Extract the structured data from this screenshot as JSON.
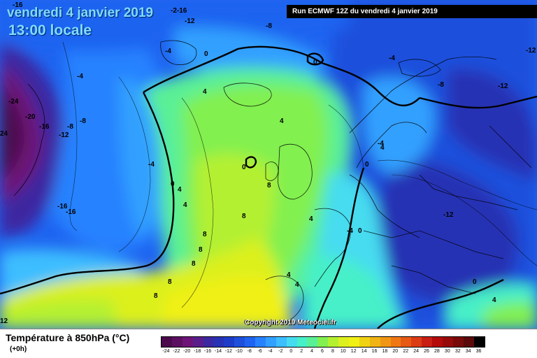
{
  "header": {
    "date": "vendredi 4 janvier 2019",
    "local_time": "13:00 locale",
    "run_info": "Run ECMWF 12Z du vendredi 4 janvier 2019"
  },
  "copyright": "Copyright 2019 Meteociel.fr",
  "footer": {
    "parameter": "Température à 850hPa (°C)",
    "lead_time": "(+0h)"
  },
  "legend": {
    "steps": [
      {
        "label": "-24",
        "color": "#4b0a4b"
      },
      {
        "label": "-22",
        "color": "#5c0f60"
      },
      {
        "label": "-20",
        "color": "#6e1478"
      },
      {
        "label": "-18",
        "color": "#5a1e8c"
      },
      {
        "label": "-16",
        "color": "#3c28a0"
      },
      {
        "label": "-14",
        "color": "#2832b4"
      },
      {
        "label": "-12",
        "color": "#1e3cc8"
      },
      {
        "label": "-10",
        "color": "#1e50dc"
      },
      {
        "label": "-8",
        "color": "#1e64f0"
      },
      {
        "label": "-6",
        "color": "#2882ff"
      },
      {
        "label": "-4",
        "color": "#32a0ff"
      },
      {
        "label": "-2",
        "color": "#3cbeff"
      },
      {
        "label": "0",
        "color": "#46dcf0"
      },
      {
        "label": "2",
        "color": "#46f0c8"
      },
      {
        "label": "4",
        "color": "#5af096"
      },
      {
        "label": "6",
        "color": "#82f050"
      },
      {
        "label": "8",
        "color": "#b4f032"
      },
      {
        "label": "10",
        "color": "#dcf01e"
      },
      {
        "label": "12",
        "color": "#f0f014"
      },
      {
        "label": "14",
        "color": "#f0d214"
      },
      {
        "label": "16",
        "color": "#f0b414"
      },
      {
        "label": "18",
        "color": "#f09614"
      },
      {
        "label": "20",
        "color": "#f07814"
      },
      {
        "label": "22",
        "color": "#e65a14"
      },
      {
        "label": "24",
        "color": "#dc3c14"
      },
      {
        "label": "26",
        "color": "#c81e14"
      },
      {
        "label": "28",
        "color": "#b40a0a"
      },
      {
        "label": "30",
        "color": "#960a0a"
      },
      {
        "label": "32",
        "color": "#780a0a"
      },
      {
        "label": "34",
        "color": "#5a0a0a"
      },
      {
        "label": "36",
        "color": "#000000"
      }
    ]
  },
  "isotherm_labels": {
    "m24a": "-24",
    "m24b": "24",
    "m20": "-20",
    "m16a": "-16",
    "m16b": "-16",
    "m16c": "-16",
    "m16d": "-16",
    "m16e": "-2-16",
    "m12a": "-12",
    "m12b": "-12",
    "m12c": "-12",
    "m12d": "-12",
    "m12e": "-12",
    "m8a": "-8",
    "m8b": "-8",
    "m8c": "-8",
    "m8d": "-8",
    "m4a": "-4",
    "m4b": "-4",
    "m4c": "-4",
    "m4d": "-4",
    "m4e": "-4",
    "m4f": "-4",
    "z1": "0",
    "z2": "0",
    "z3": "0",
    "z4": "0",
    "z5": "0",
    "z6": "0",
    "z7": "0",
    "p4a": "4",
    "p4b": "4",
    "p4c": "4",
    "p4d": "4",
    "p4e": "4",
    "p4f": "4",
    "p4g": "4",
    "p4h": "4",
    "p4i": "4",
    "p8a": "8",
    "p8b": "8",
    "p8c": "8",
    "p8d": "8",
    "p8e": "8",
    "p8f": "8",
    "p8g": "8",
    "p12a": "12"
  }
}
